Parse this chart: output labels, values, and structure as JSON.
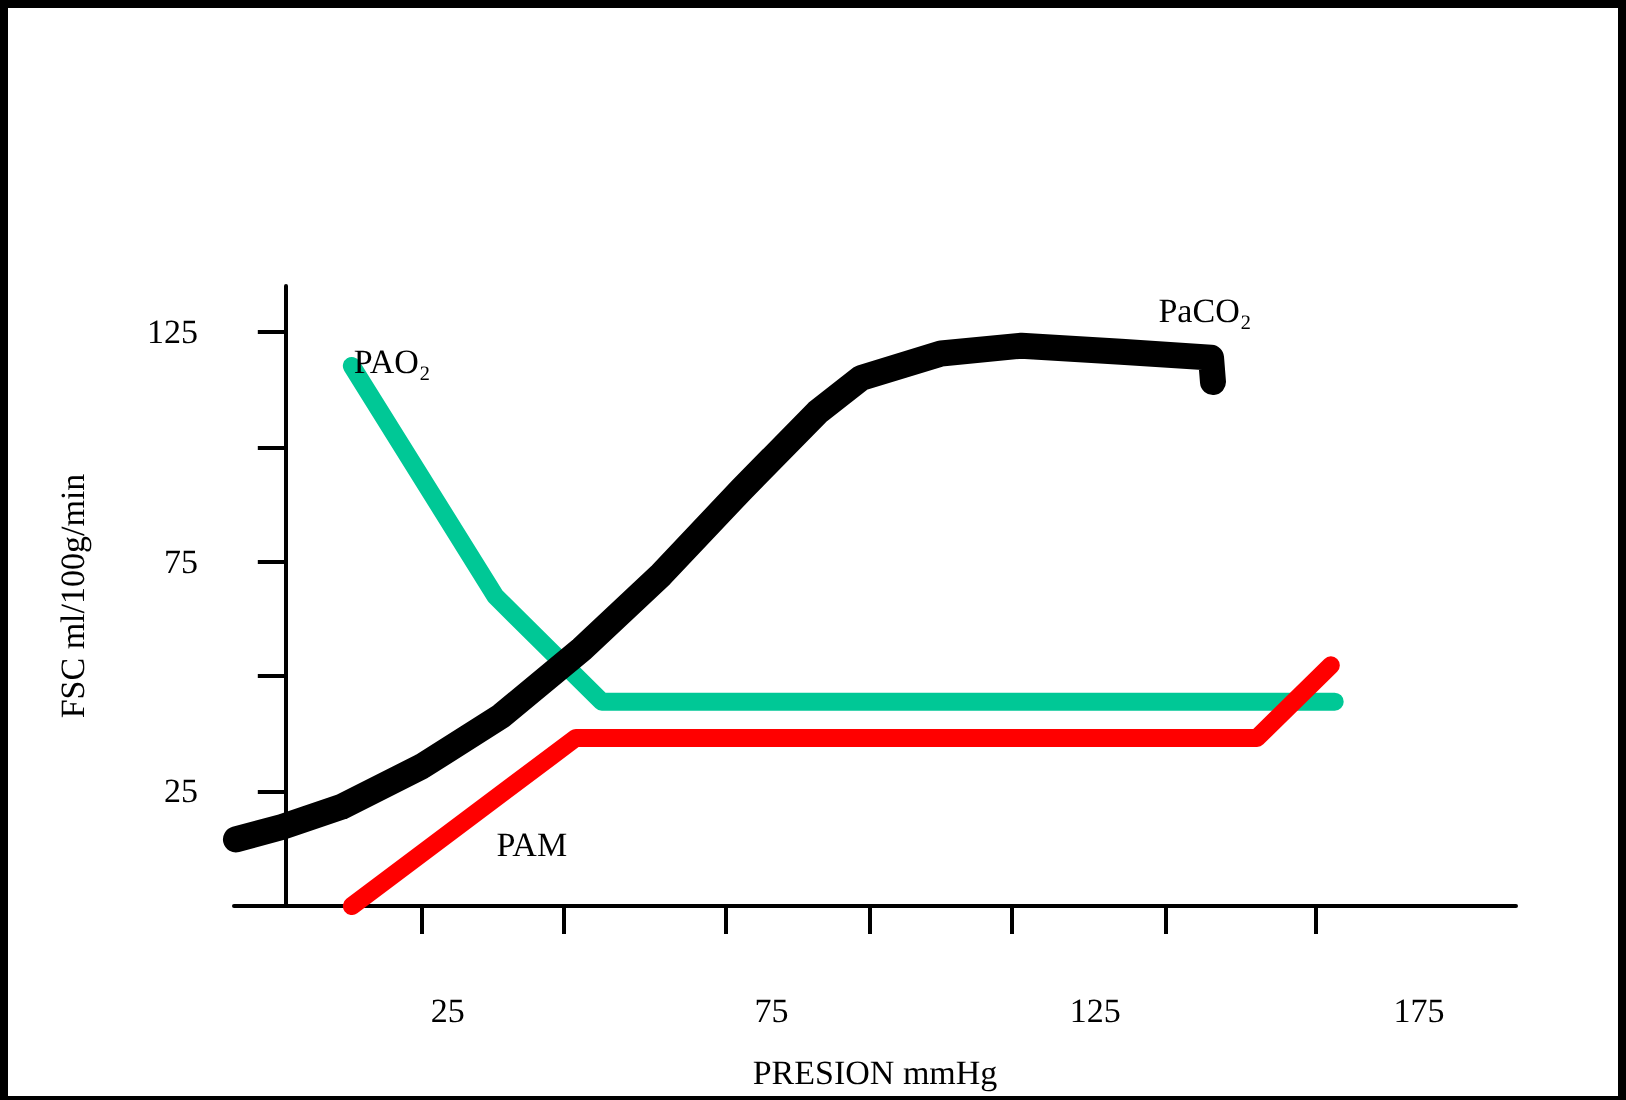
{
  "chart_data": {
    "type": "line",
    "xlabel": "PRESION mmHg",
    "ylabel": "FSC ml/100g/min",
    "xlim": [
      -8,
      190
    ],
    "ylim": [
      0,
      135
    ],
    "xticks": [
      {
        "value": 21,
        "label": null
      },
      25,
      {
        "value": 43,
        "label": null
      },
      {
        "value": 68,
        "label": null
      },
      75,
      {
        "value": 90,
        "label": null
      },
      {
        "value": 112,
        "label": null
      },
      125,
      {
        "value": 136,
        "label": null
      },
      {
        "value": 159,
        "label": null
      },
      175
    ],
    "yticks": [
      25,
      {
        "value": 50,
        "label": null
      },
      75,
      {
        "value": 100,
        "label": null
      },
      125
    ],
    "grid": false,
    "legend": false,
    "marker": "none",
    "line_style": "solid",
    "series": [
      {
        "name": "PAO₂",
        "color": "#00c896",
        "x": [
          10.2,
          32.4,
          48.8,
          162
        ],
        "values": [
          117.6,
          67.4,
          44.5,
          44.5
        ]
      },
      {
        "name": "PAM",
        "color": "#ff0000",
        "x": [
          10.2,
          44.8,
          150,
          161.4
        ],
        "values": [
          0,
          36.6,
          36.6,
          52.4
        ]
      },
      {
        "name": "PaCO₂",
        "color": "#000000",
        "x": [
          -7.7,
          -0.6,
          8.6,
          21,
          33.3,
          45.7,
          58,
          70.4,
          82.1,
          88.9,
          101.2,
          113.6,
          129,
          142.9,
          143.2
        ],
        "values": [
          14.5,
          17.2,
          21.6,
          30.4,
          41.4,
          55.9,
          72.2,
          90.7,
          107.5,
          115,
          120.3,
          122,
          120.7,
          119.4,
          114.1
        ]
      }
    ]
  }
}
